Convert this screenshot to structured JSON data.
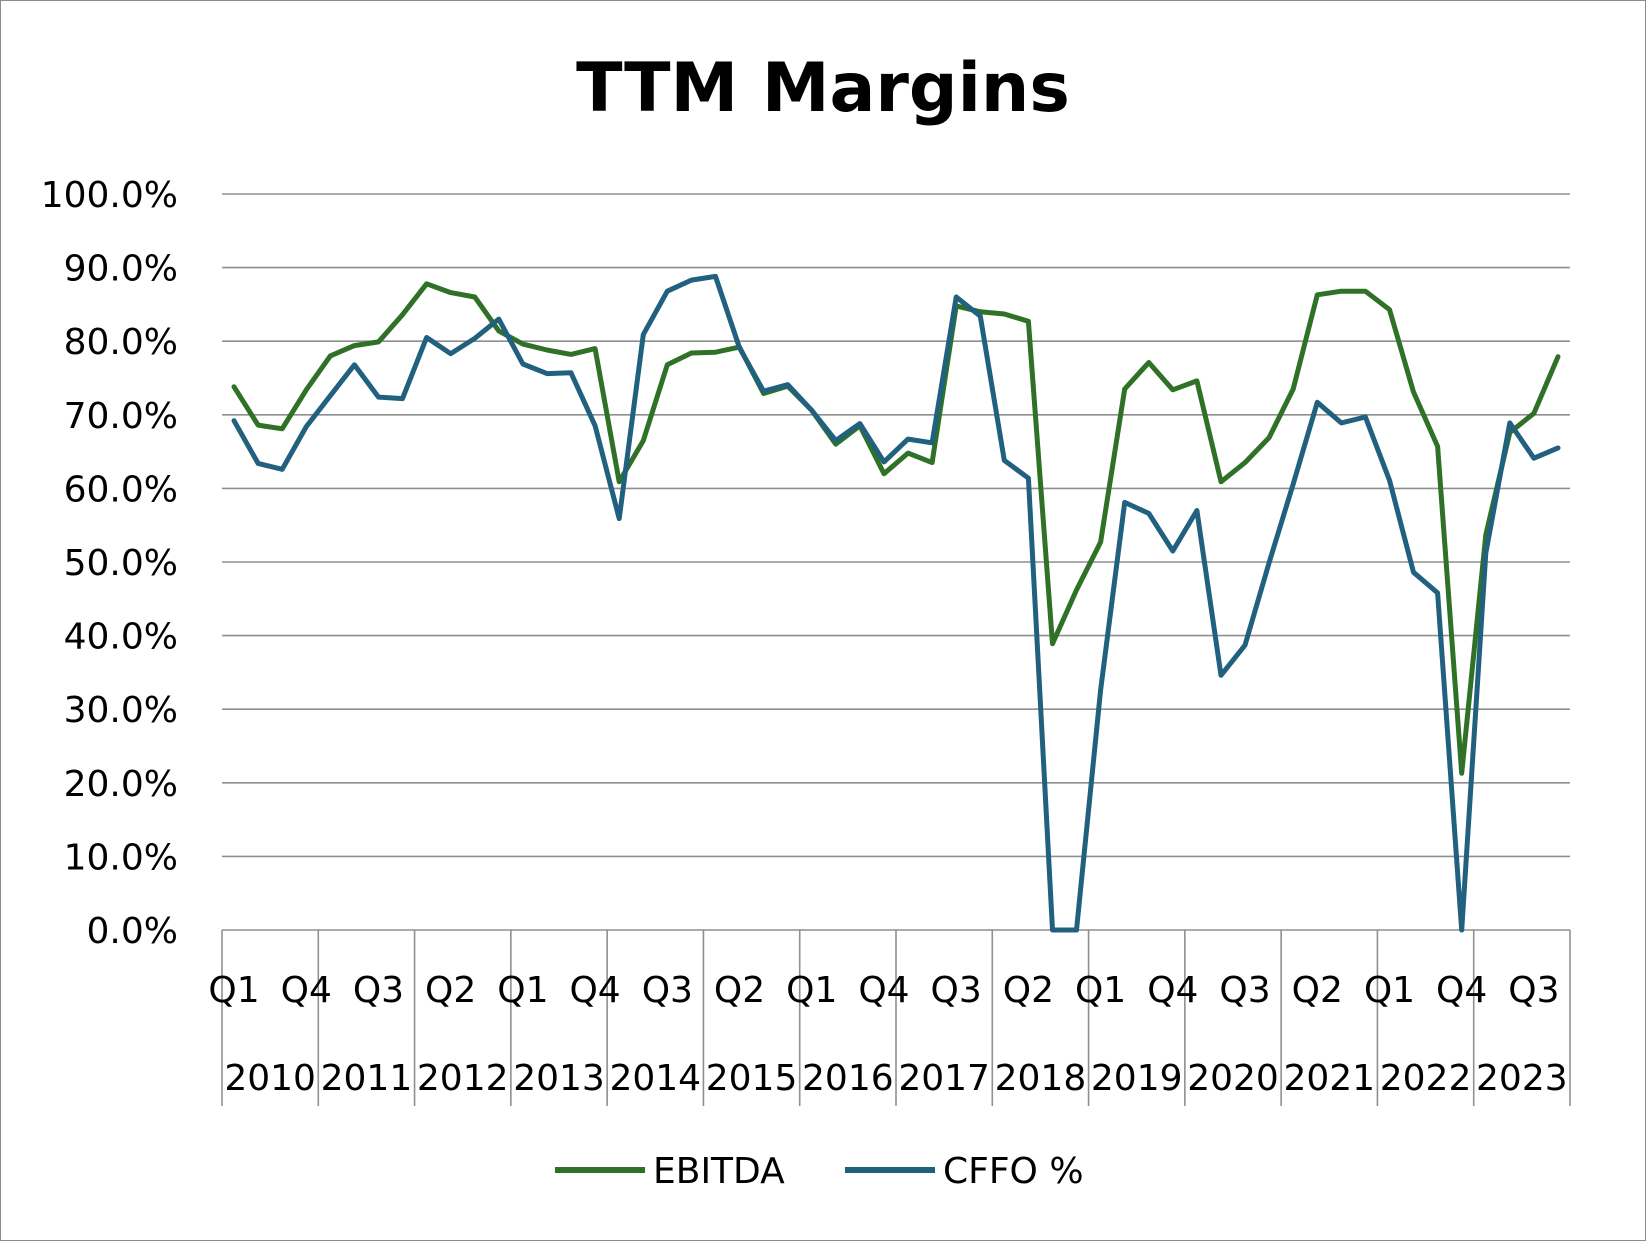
{
  "chart_data": {
    "type": "line",
    "title": "TTM Margins",
    "xlabel": "",
    "ylabel": "",
    "ylim": [
      0,
      100
    ],
    "y_ticks": [
      "0.0%",
      "10.0%",
      "20.0%",
      "30.0%",
      "40.0%",
      "50.0%",
      "60.0%",
      "70.0%",
      "80.0%",
      "90.0%",
      "100.0%"
    ],
    "grid": true,
    "legend_position": "bottom",
    "x_quarter_labels": [
      "Q1",
      "Q4",
      "Q3",
      "Q2",
      "Q1",
      "Q4",
      "Q3",
      "Q2",
      "Q1",
      "Q4",
      "Q3",
      "Q2",
      "Q1",
      "Q4",
      "Q3",
      "Q2",
      "Q1",
      "Q4",
      "Q3"
    ],
    "x_year_labels": [
      "2010",
      "2011",
      "2012",
      "2013",
      "2014",
      "2015",
      "2016",
      "2017",
      "2018",
      "2019",
      "2020",
      "2021",
      "2022",
      "2023"
    ],
    "categories": [
      "Q1 2010",
      "Q2 2010",
      "Q3 2010",
      "Q4 2010",
      "Q1 2011",
      "Q2 2011",
      "Q3 2011",
      "Q4 2011",
      "Q1 2012",
      "Q2 2012",
      "Q3 2012",
      "Q4 2012",
      "Q1 2013",
      "Q2 2013",
      "Q3 2013",
      "Q4 2013",
      "Q1 2014",
      "Q2 2014",
      "Q3 2014",
      "Q4 2014",
      "Q1 2015",
      "Q2 2015",
      "Q3 2015",
      "Q4 2015",
      "Q1 2016",
      "Q2 2016",
      "Q3 2016",
      "Q4 2016",
      "Q1 2017",
      "Q2 2017",
      "Q3 2017",
      "Q4 2017",
      "Q1 2018",
      "Q2 2018",
      "Q3 2018",
      "Q4 2018",
      "Q1 2019",
      "Q2 2019",
      "Q3 2019",
      "Q4 2019",
      "Q1 2020",
      "Q2 2020",
      "Q3 2020",
      "Q4 2020",
      "Q1 2021",
      "Q2 2021",
      "Q3 2021",
      "Q4 2021",
      "Q1 2022",
      "Q2 2022",
      "Q3 2022",
      "Q4 2022",
      "Q1 2023",
      "Q2 2023",
      "Q3 2023",
      "Q4 2023"
    ],
    "series": [
      {
        "name": "EBITDA",
        "color": "#2e7127",
        "values": [
          73.8,
          68.6,
          68.1,
          73.4,
          78.0,
          79.4,
          79.9,
          83.6,
          87.8,
          86.6,
          86.0,
          81.4,
          79.6,
          78.8,
          78.2,
          79.0,
          60.9,
          66.5,
          76.8,
          78.4,
          78.5,
          79.2,
          72.9,
          73.9,
          70.6,
          66.0,
          68.5,
          62.0,
          64.8,
          63.5,
          84.8,
          84.0,
          83.7,
          82.7,
          38.9,
          46.2,
          52.7,
          73.5,
          77.1,
          73.4,
          74.6,
          60.9,
          63.5,
          66.9,
          73.5,
          86.3,
          86.8,
          86.8,
          84.3,
          73.1,
          65.7,
          21.3,
          53.7,
          67.6,
          70.2,
          77.9
        ]
      },
      {
        "name": "CFFO %",
        "color": "#21607e",
        "values": [
          69.2,
          63.4,
          62.6,
          68.4,
          72.6,
          76.8,
          72.4,
          72.2,
          80.5,
          78.3,
          80.4,
          83.0,
          76.9,
          75.6,
          75.7,
          68.5,
          55.9,
          80.9,
          86.8,
          88.3,
          88.8,
          79.1,
          73.2,
          74.1,
          70.6,
          66.5,
          68.8,
          63.6,
          66.7,
          66.2,
          86.0,
          83.4,
          63.8,
          61.4,
          0.0,
          0.0,
          32.6,
          58.1,
          56.6,
          51.5,
          57.0,
          34.6,
          38.7,
          49.9,
          60.6,
          71.7,
          68.9,
          69.7,
          61.1,
          48.6,
          45.8,
          0.0,
          51.2,
          68.9,
          64.1,
          65.5
        ]
      }
    ]
  }
}
